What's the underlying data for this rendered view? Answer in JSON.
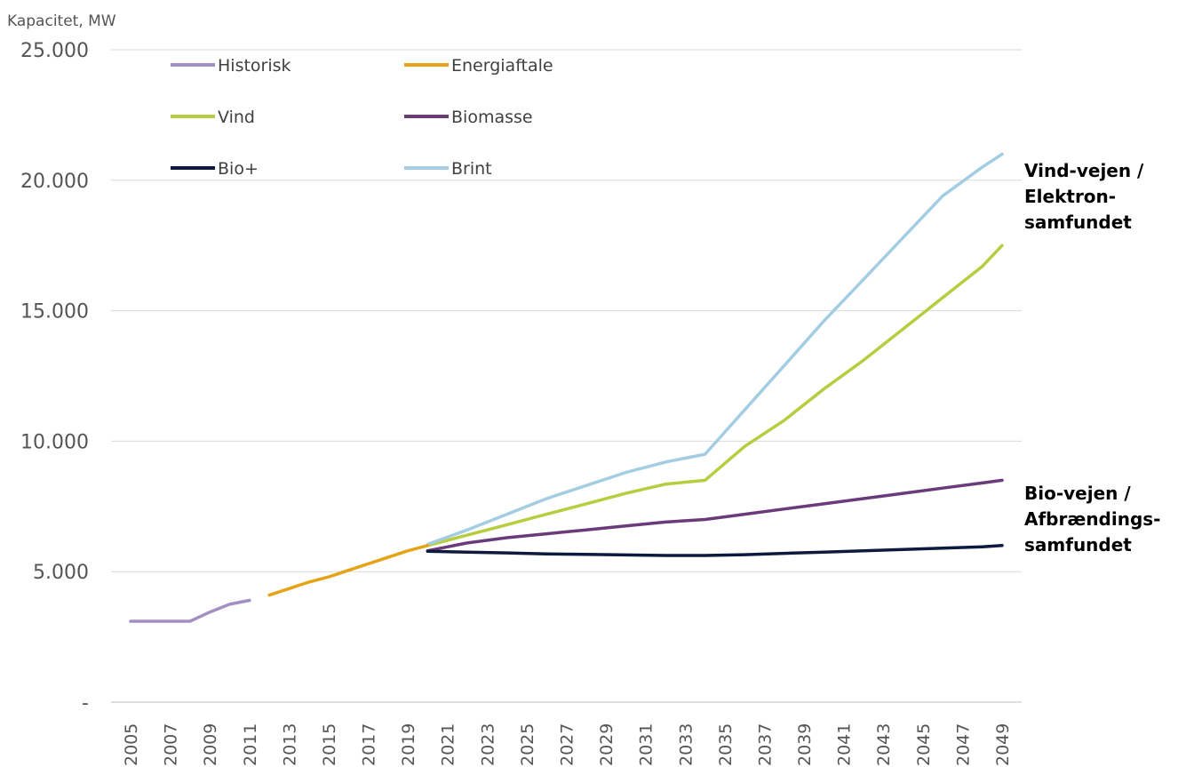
{
  "chart_data": {
    "type": "line",
    "ylabel": "Kapacitet, MW",
    "ylim": [
      0,
      25000
    ],
    "yticks": [
      {
        "value": 0,
        "label": "-"
      },
      {
        "value": 5000,
        "label": "5.000"
      },
      {
        "value": 10000,
        "label": "10.000"
      },
      {
        "value": 15000,
        "label": "15.000"
      },
      {
        "value": 20000,
        "label": "20.000"
      },
      {
        "value": 25000,
        "label": "25.000"
      }
    ],
    "xtick_labels": [
      "2005",
      "2007",
      "2009",
      "2011",
      "2013",
      "2015",
      "2017",
      "2019",
      "2021",
      "2023",
      "2025",
      "2027",
      "2029",
      "2031",
      "2033",
      "2035",
      "2037",
      "2039",
      "2041",
      "2043",
      "2045",
      "2047",
      "2049"
    ],
    "x_range": [
      2005,
      2049
    ],
    "grid": "horizontal",
    "legend_position": "top-left",
    "series": [
      {
        "name": "Historisk",
        "color": "#a48fc2",
        "x": [
          2005,
          2006,
          2007,
          2008,
          2009,
          2010,
          2011
        ],
        "y": [
          3100,
          3100,
          3100,
          3100,
          3450,
          3750,
          3900
        ]
      },
      {
        "name": "Energiaftale",
        "color": "#e5a317",
        "x": [
          2012,
          2013,
          2014,
          2015,
          2016,
          2017,
          2018,
          2019,
          2020
        ],
        "y": [
          4100,
          4350,
          4600,
          4800,
          5050,
          5300,
          5550,
          5800,
          6000
        ]
      },
      {
        "name": "Vind",
        "color": "#b8cc40",
        "x": [
          2020,
          2022,
          2024,
          2026,
          2028,
          2030,
          2032,
          2034,
          2036,
          2038,
          2040,
          2042,
          2044,
          2046,
          2048,
          2049
        ],
        "y": [
          6000,
          6400,
          6800,
          7200,
          7600,
          8000,
          8350,
          8500,
          9800,
          10800,
          12000,
          13100,
          14300,
          15500,
          16700,
          17500
        ]
      },
      {
        "name": "Biomasse",
        "color": "#6b3a7b",
        "x": [
          2020,
          2022,
          2024,
          2026,
          2028,
          2030,
          2032,
          2034,
          2036,
          2038,
          2040,
          2042,
          2044,
          2046,
          2048,
          2049
        ],
        "y": [
          5800,
          6100,
          6300,
          6450,
          6600,
          6750,
          6900,
          7000,
          7200,
          7400,
          7600,
          7800,
          8000,
          8200,
          8400,
          8500
        ]
      },
      {
        "name": "Bio+",
        "color": "#0d1a3d",
        "x": [
          2020,
          2022,
          2024,
          2026,
          2028,
          2030,
          2032,
          2034,
          2036,
          2038,
          2040,
          2042,
          2044,
          2046,
          2048,
          2049
        ],
        "y": [
          5780,
          5750,
          5720,
          5680,
          5660,
          5640,
          5620,
          5620,
          5650,
          5700,
          5750,
          5800,
          5850,
          5900,
          5950,
          6000
        ]
      },
      {
        "name": "Brint",
        "color": "#a3cde3",
        "x": [
          2020,
          2022,
          2024,
          2026,
          2028,
          2030,
          2032,
          2034,
          2036,
          2038,
          2040,
          2042,
          2044,
          2046,
          2048,
          2049
        ],
        "y": [
          6050,
          6600,
          7200,
          7800,
          8300,
          8800,
          9200,
          9500,
          11200,
          12900,
          14600,
          16200,
          17800,
          19400,
          20500,
          21000
        ]
      }
    ],
    "annotations": [
      {
        "text": "Vind-vejen /\nElektron-\nsamfundet",
        "anchor_series": "Brint"
      },
      {
        "text": "Bio-vejen /\nAfbrændings-\nsamfundet",
        "anchor_series": "Bio+"
      }
    ]
  }
}
